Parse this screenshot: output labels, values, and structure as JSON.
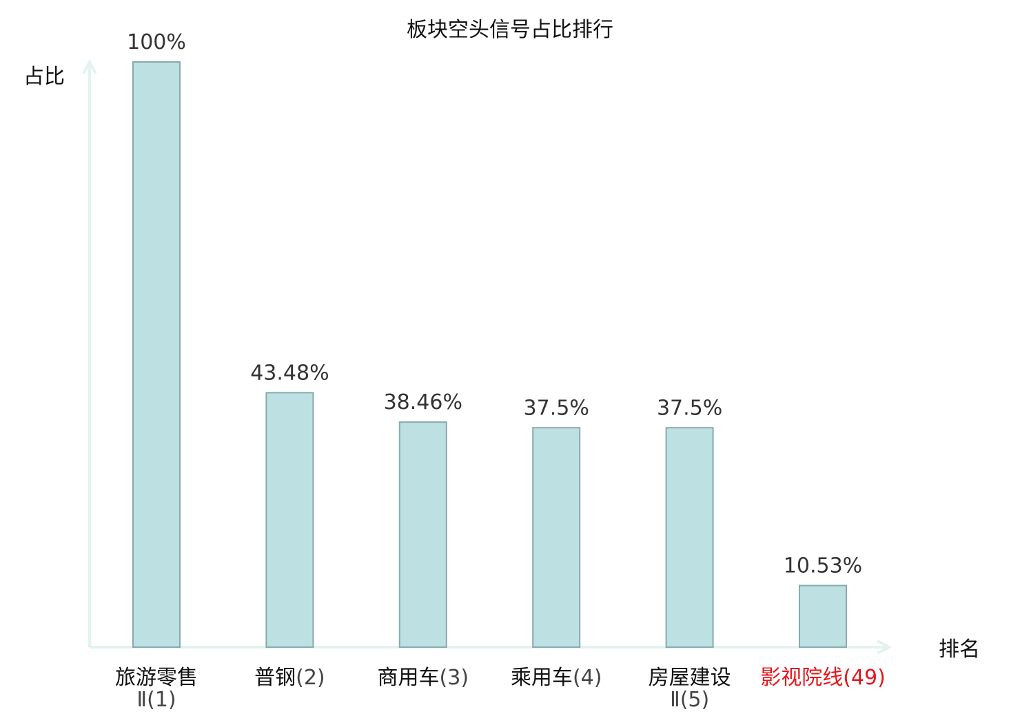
{
  "chart_data": {
    "type": "bar",
    "title": "板块空头信号占比排行",
    "ylabel": "占比",
    "xlabel": "排名",
    "ylim": [
      0,
      100
    ],
    "grid": false,
    "categories": [
      {
        "name": "旅游零售",
        "suffix": "Ⅱ(1)",
        "suffix_newline": true,
        "highlight": false
      },
      {
        "name": "普钢",
        "suffix": "(2)",
        "suffix_newline": false,
        "highlight": false
      },
      {
        "name": "商用车",
        "suffix": "(3)",
        "suffix_newline": false,
        "highlight": false
      },
      {
        "name": "乘用车",
        "suffix": "(4)",
        "suffix_newline": false,
        "highlight": false
      },
      {
        "name": "房屋建设",
        "suffix": "Ⅱ(5)",
        "suffix_newline": true,
        "highlight": false
      },
      {
        "name": "影视院线",
        "suffix": "(49)",
        "suffix_newline": false,
        "highlight": true
      }
    ],
    "values": [
      100,
      43.48,
      38.46,
      37.5,
      37.5,
      10.53
    ],
    "value_labels": [
      "100%",
      "43.48%",
      "38.46%",
      "37.5%",
      "37.5%",
      "10.53%"
    ]
  },
  "colors": {
    "bar_fill": "#bde0e3",
    "bar_stroke": "#8aa9ad",
    "axis": "#e2f2ef",
    "text": "#111111",
    "value_text": "#333333",
    "suffix_text": "#444444",
    "highlight": "#e8141a"
  }
}
